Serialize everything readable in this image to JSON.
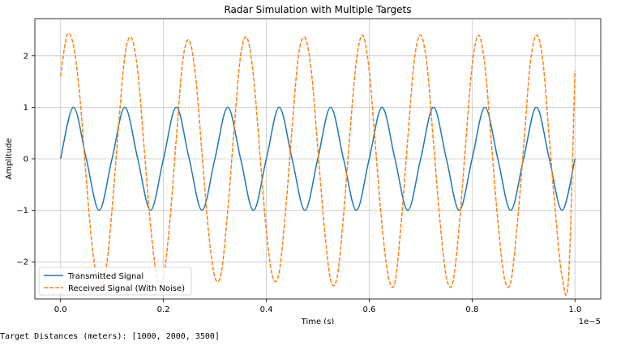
{
  "chart_data": {
    "type": "line",
    "title": "Radar Simulation with Multiple Targets",
    "xlabel": "Time (s)",
    "ylabel": "Amplitude",
    "x_offset_label": "1e−5",
    "xlim": [
      -0.05,
      1.05
    ],
    "ylim": [
      -2.72,
      2.72
    ],
    "x_ticks": [
      0.0,
      0.2,
      0.4,
      0.6,
      0.8,
      1.0
    ],
    "x_tick_labels": [
      "0.0",
      "0.2",
      "0.4",
      "0.6",
      "0.8",
      "1.0"
    ],
    "y_ticks": [
      -2,
      -1,
      0,
      1,
      2
    ],
    "y_tick_labels": [
      "−2",
      "−1",
      "0",
      "1",
      "2"
    ],
    "grid": true,
    "legend_position": "lower-left",
    "series": [
      {
        "name": "Transmitted Signal",
        "color": "#1f77b4",
        "style": "solid",
        "x": [
          0.0,
          0.025,
          0.05,
          0.075,
          0.1,
          0.125,
          0.15,
          0.175,
          0.2,
          0.225,
          0.25,
          0.275,
          0.3,
          0.325,
          0.35,
          0.375,
          0.4,
          0.425,
          0.45,
          0.475,
          0.5,
          0.525,
          0.55,
          0.575,
          0.6,
          0.625,
          0.65,
          0.675,
          0.7,
          0.725,
          0.75,
          0.775,
          0.8,
          0.825,
          0.85,
          0.875,
          0.9,
          0.925,
          0.95,
          0.975,
          1.0
        ],
        "y": [
          0,
          1,
          0,
          -1,
          0,
          1,
          0,
          -1,
          0,
          1,
          0,
          -1,
          0,
          1,
          0,
          -1,
          0,
          1,
          0,
          -1,
          0,
          1,
          0,
          -1,
          0,
          1,
          0,
          -1,
          0,
          1,
          0,
          -1,
          0,
          1,
          0,
          -1,
          0,
          1,
          0,
          -1,
          0
        ]
      },
      {
        "name": "Received Signal (With Noise)",
        "color": "#ff7f0e",
        "style": "dashed",
        "x": [
          0.0,
          0.0125,
          0.025,
          0.0375,
          0.05,
          0.0625,
          0.075,
          0.0875,
          0.1,
          0.1125,
          0.125,
          0.1375,
          0.15,
          0.1625,
          0.175,
          0.1875,
          0.2,
          0.2125,
          0.225,
          0.2375,
          0.25,
          0.2625,
          0.275,
          0.2875,
          0.3,
          0.3125,
          0.325,
          0.3375,
          0.35,
          0.3625,
          0.375,
          0.3875,
          0.4,
          0.4125,
          0.425,
          0.4375,
          0.45,
          0.4625,
          0.475,
          0.4875,
          0.5,
          0.5125,
          0.525,
          0.5375,
          0.55,
          0.5625,
          0.575,
          0.5875,
          0.6,
          0.6125,
          0.625,
          0.6375,
          0.65,
          0.6625,
          0.675,
          0.6875,
          0.7,
          0.7125,
          0.725,
          0.7375,
          0.75,
          0.7625,
          0.775,
          0.7875,
          0.8,
          0.8125,
          0.825,
          0.8375,
          0.85,
          0.8625,
          0.875,
          0.8875,
          0.9,
          0.9125,
          0.925,
          0.9375,
          0.95,
          0.9625,
          0.975,
          0.9875,
          1.0
        ],
        "y": [
          1.6,
          2.4,
          2.2,
          1.2,
          -0.4,
          -1.8,
          -2.4,
          -2.2,
          -1.0,
          0.6,
          2.0,
          2.35,
          1.7,
          0.2,
          -1.3,
          -2.3,
          -2.3,
          -1.2,
          0.4,
          1.9,
          2.3,
          1.6,
          0.1,
          -1.4,
          -2.3,
          -2.2,
          -1.0,
          0.6,
          2.0,
          2.35,
          1.6,
          0.1,
          -1.4,
          -2.3,
          -2.2,
          -1.0,
          0.6,
          2.0,
          2.35,
          1.7,
          0.2,
          -1.3,
          -2.35,
          -2.3,
          -1.1,
          0.5,
          1.9,
          2.4,
          1.7,
          0.2,
          -1.3,
          -2.3,
          -2.4,
          -1.2,
          0.4,
          1.9,
          2.4,
          1.8,
          0.3,
          -1.2,
          -2.3,
          -2.4,
          -1.3,
          0.3,
          1.8,
          2.4,
          1.8,
          0.3,
          -1.2,
          -2.3,
          -2.4,
          -1.3,
          0.2,
          1.8,
          2.4,
          1.9,
          0.4,
          -1.1,
          -2.3,
          -2.3,
          1.7
        ]
      }
    ]
  },
  "output": {
    "text": "Target Distances (meters): [1000, 2000, 3500]"
  }
}
